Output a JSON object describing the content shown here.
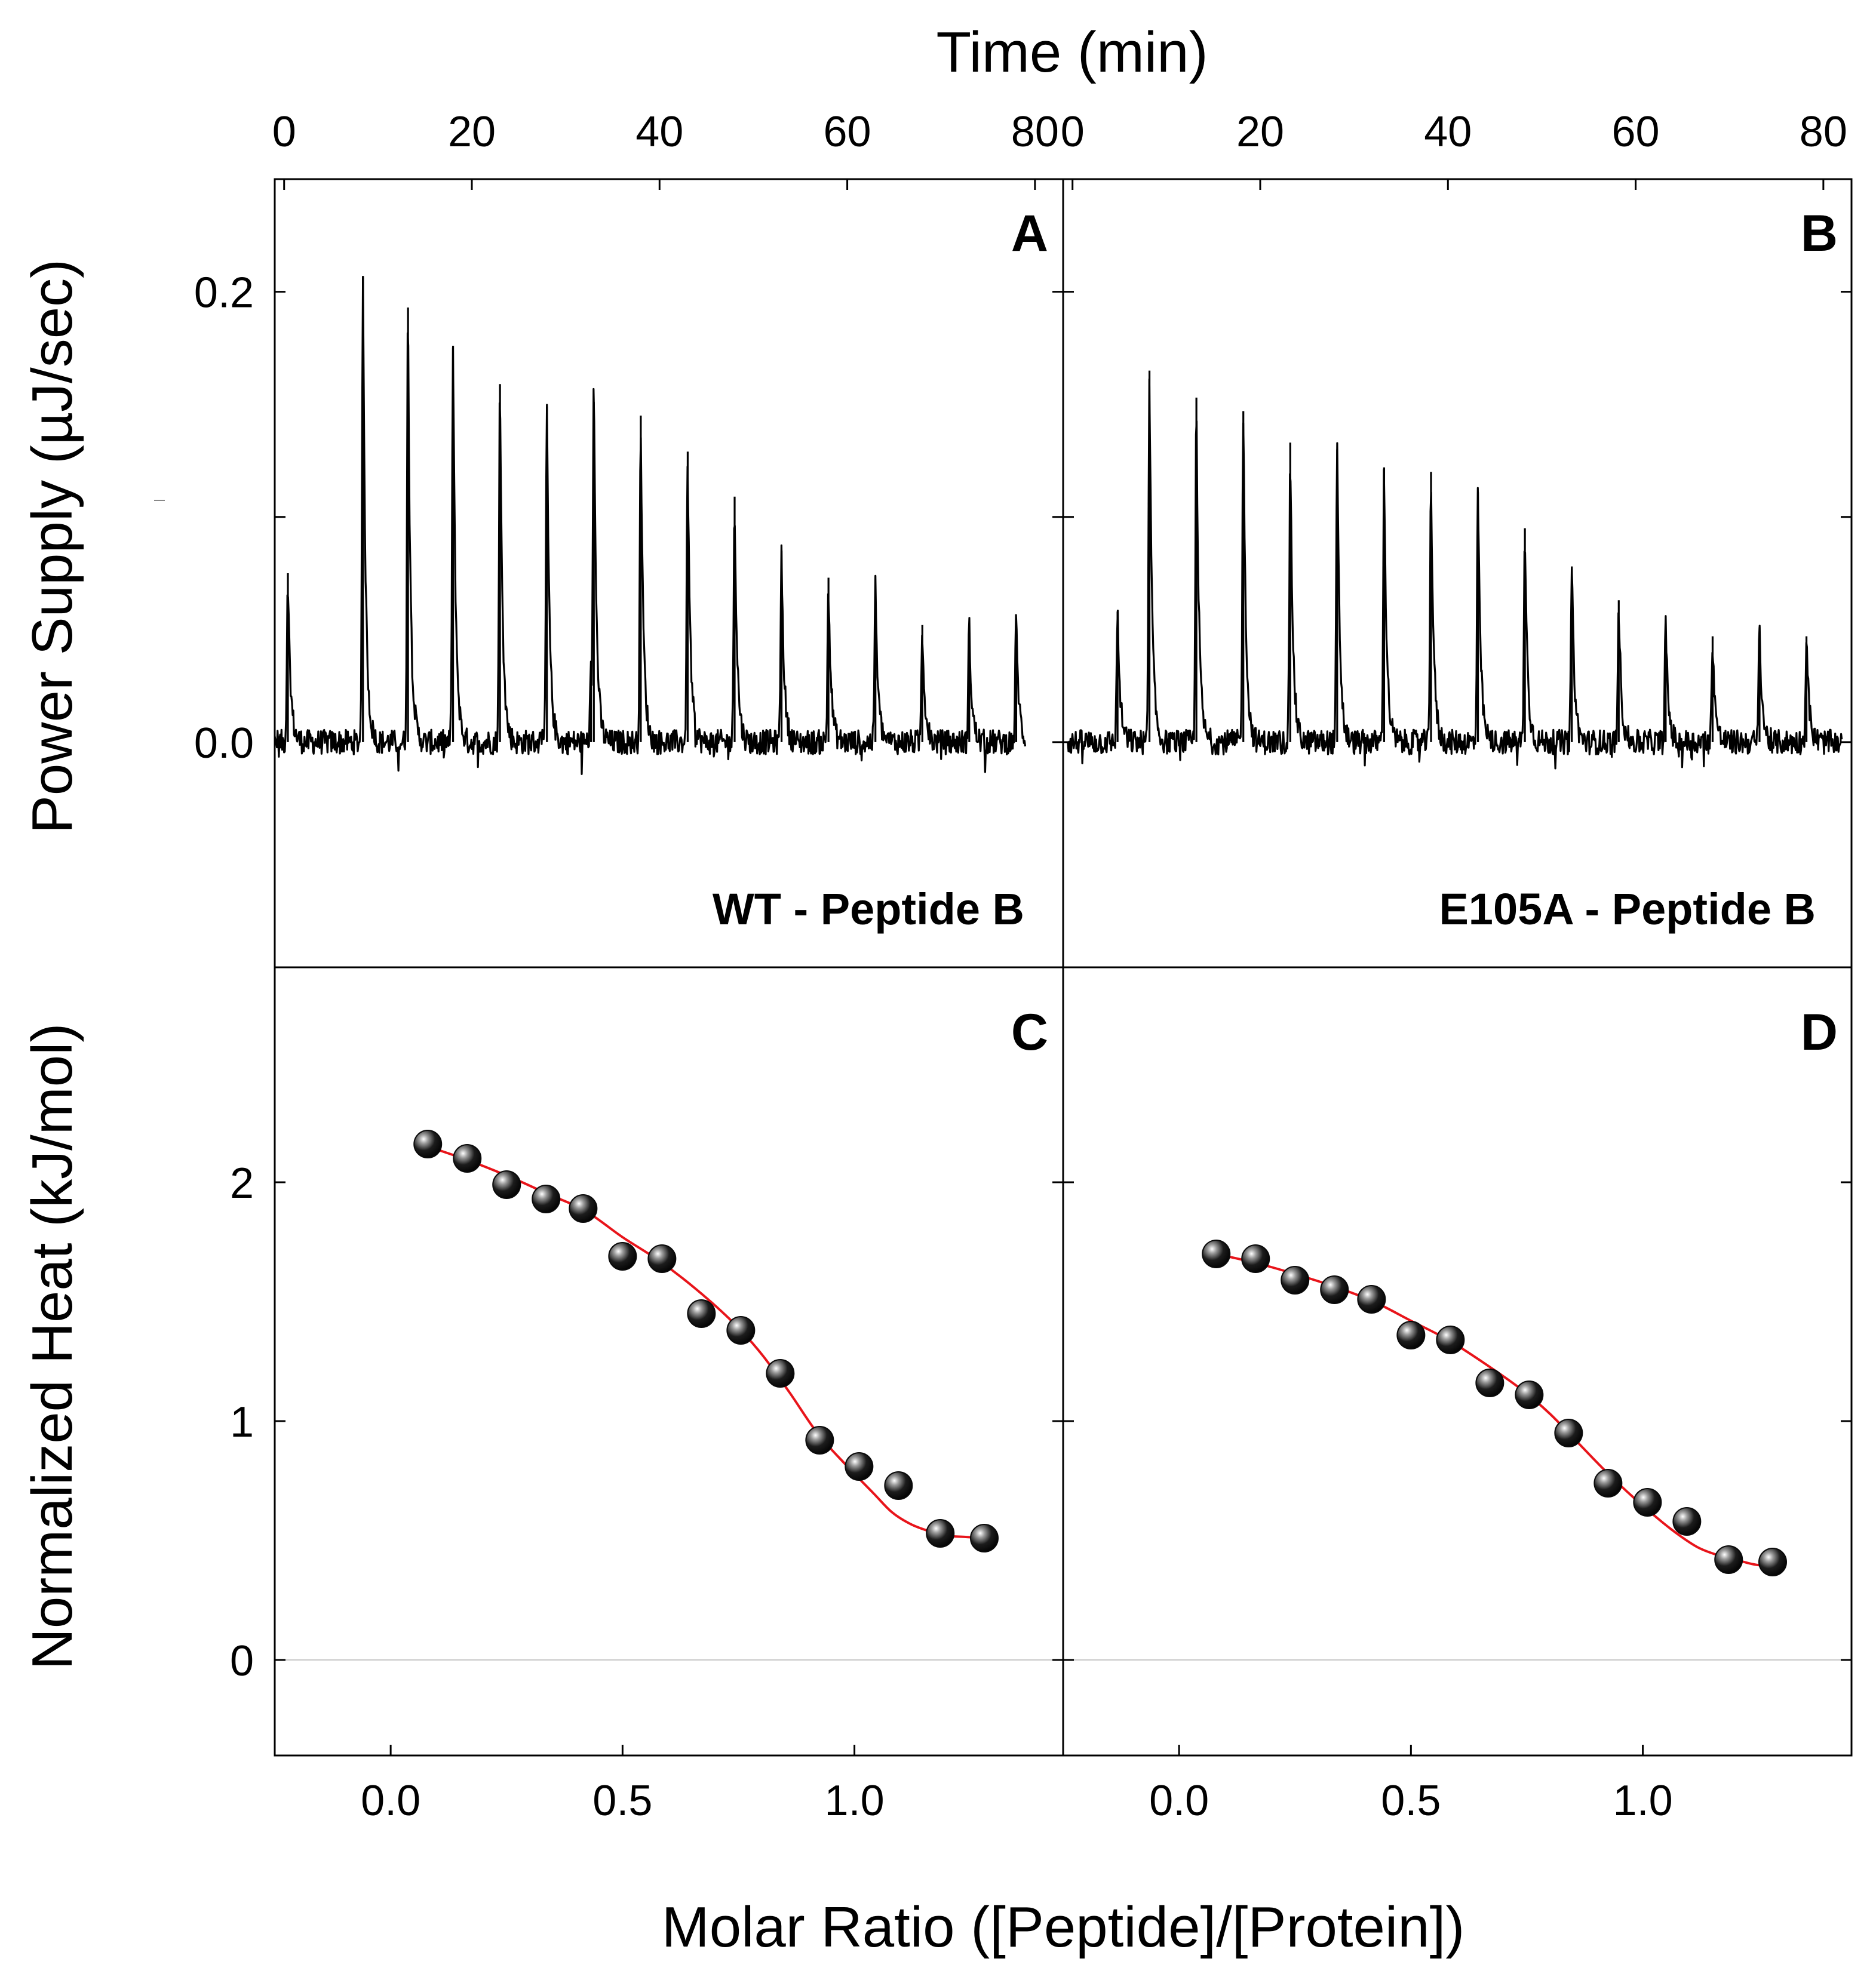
{
  "chart_data": {
    "type": "scatter",
    "title": "",
    "shared_axes": {
      "top_xlabel": "Time (min)",
      "bottom_xlabel": "Molar Ratio ([Peptide]/[Protein])",
      "top_ylabel": "Power Supply (µJ/sec)",
      "bottom_ylabel": "Normalized Heat (kJ/mol)",
      "top_xlim": [
        -1,
        83
      ],
      "top_xticks": [
        0,
        20,
        40,
        60,
        80
      ],
      "top_xtick_labels": [
        "0",
        "20",
        "40",
        "60",
        "80"
      ],
      "top_ylim": [
        -0.1,
        0.25
      ],
      "top_yticks": [
        0.0,
        0.1,
        0.2
      ],
      "top_ytick_labels": [
        "0.0",
        "0.2"
      ],
      "top_ytick_label_values": [
        0.0,
        0.2
      ],
      "bottom_xlim": [
        -0.25,
        1.45
      ],
      "bottom_xticks": [
        0.0,
        0.5,
        1.0
      ],
      "bottom_xtick_labels": [
        "0.0",
        "0.5",
        "1.0"
      ],
      "bottom_ylim": [
        -0.4,
        2.9
      ],
      "bottom_yticks": [
        0,
        1,
        2
      ],
      "bottom_ytick_labels": [
        "0",
        "1",
        "2"
      ]
    },
    "panels": [
      {
        "id": "A",
        "letter": "A",
        "label": "WT - Peptide B",
        "type": "line",
        "baseline": 0.0,
        "time_start": -3.5,
        "time_end": 79,
        "peak_times": [
          0.4,
          8.4,
          13.2,
          18.0,
          23.0,
          28.0,
          33.0,
          38.0,
          43.0,
          48.0,
          53.0,
          58.0,
          63.0,
          68.0,
          73.0,
          78.0
        ],
        "peak_heights": [
          0.075,
          0.207,
          0.193,
          0.176,
          0.159,
          0.149,
          0.151,
          0.145,
          0.129,
          0.109,
          0.085,
          0.073,
          0.069,
          0.052,
          0.052,
          0.055
        ],
        "extra_peaks": [
          {
            "time": 32.7,
            "height": 0.03
          }
        ]
      },
      {
        "id": "B",
        "letter": "B",
        "label": "E105A - Peptide B",
        "type": "line",
        "baseline": 0.0,
        "time_start": -0.5,
        "time_end": 82,
        "peak_times": [
          4.8,
          8.2,
          13.2,
          18.2,
          23.2,
          28.2,
          33.2,
          38.2,
          43.2,
          48.2,
          53.2,
          58.2,
          63.2,
          68.2,
          73.2,
          78.2
        ],
        "peak_heights": [
          0.058,
          0.165,
          0.153,
          0.147,
          0.133,
          0.13,
          0.122,
          0.12,
          0.111,
          0.095,
          0.078,
          0.063,
          0.052,
          0.047,
          0.051,
          0.047
        ],
        "extra_peaks": []
      },
      {
        "id": "C",
        "letter": "C",
        "type": "scatter",
        "x": [
          0.08,
          0.165,
          0.25,
          0.335,
          0.415,
          0.5,
          0.585,
          0.67,
          0.755,
          0.84,
          0.925,
          1.01,
          1.095,
          1.185,
          1.28
        ],
        "y": [
          2.16,
          2.1,
          1.99,
          1.93,
          1.89,
          1.69,
          1.68,
          1.45,
          1.38,
          1.2,
          0.92,
          0.81,
          0.73,
          0.53,
          0.51
        ],
        "fit_x": [
          0.08,
          0.17,
          0.26,
          0.34,
          0.42,
          0.5,
          0.58,
          0.66,
          0.74,
          0.8,
          0.86,
          0.92,
          0.98,
          1.04,
          1.08,
          1.12,
          1.16,
          1.2,
          1.24,
          1.28
        ],
        "fit_y": [
          2.15,
          2.09,
          2.02,
          1.95,
          1.88,
          1.77,
          1.67,
          1.55,
          1.41,
          1.28,
          1.12,
          0.95,
          0.82,
          0.7,
          0.62,
          0.57,
          0.54,
          0.52,
          0.515,
          0.51
        ]
      },
      {
        "id": "D",
        "letter": "D",
        "type": "scatter",
        "x": [
          0.08,
          0.165,
          0.25,
          0.335,
          0.415,
          0.5,
          0.585,
          0.67,
          0.755,
          0.84,
          0.925,
          1.01,
          1.095,
          1.185,
          1.28
        ],
        "y": [
          1.7,
          1.68,
          1.59,
          1.55,
          1.51,
          1.36,
          1.34,
          1.16,
          1.11,
          0.95,
          0.74,
          0.66,
          0.58,
          0.42,
          0.41
        ],
        "fit_x": [
          0.08,
          0.17,
          0.26,
          0.34,
          0.42,
          0.5,
          0.58,
          0.66,
          0.74,
          0.8,
          0.86,
          0.92,
          0.98,
          1.04,
          1.08,
          1.12,
          1.16,
          1.2,
          1.24,
          1.28
        ],
        "fit_y": [
          1.7,
          1.66,
          1.61,
          1.56,
          1.5,
          1.42,
          1.34,
          1.24,
          1.13,
          1.03,
          0.91,
          0.79,
          0.68,
          0.58,
          0.52,
          0.47,
          0.44,
          0.42,
          0.4,
          0.39
        ]
      }
    ],
    "colors": {
      "trace": "#000000",
      "fit": "#e8141a",
      "marker": "#0a0a0a",
      "zero_line": "#c8c8c8",
      "axes": "#000000"
    }
  }
}
